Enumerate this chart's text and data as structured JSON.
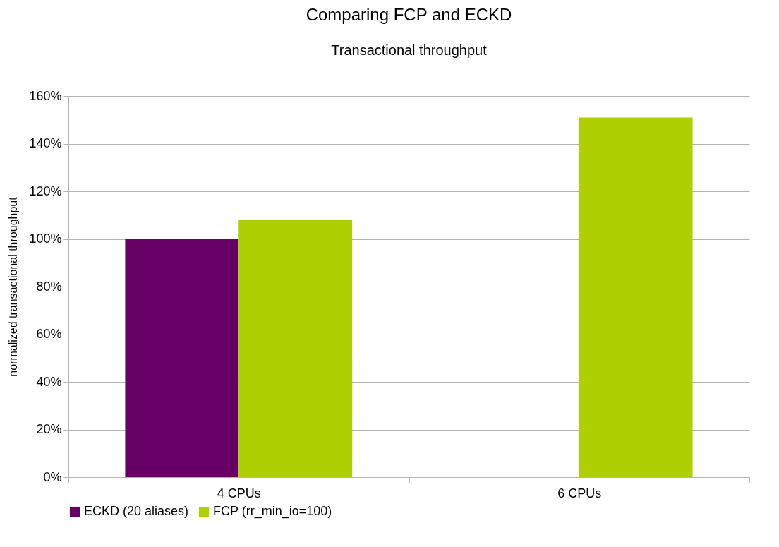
{
  "chart_data": {
    "type": "bar",
    "title": "Comparing FCP and ECKD",
    "subtitle": "Transactional throughput",
    "ylabel": "normalized transactional throughput",
    "categories": [
      "4 CPUs",
      "6 CPUs"
    ],
    "series": [
      {
        "name": "ECKD (20 aliases)",
        "color": "#660066",
        "values": [
          100,
          null
        ]
      },
      {
        "name": "FCP (rr_min_io=100)",
        "color": "#afd000",
        "values": [
          108,
          151
        ]
      }
    ],
    "ylim": [
      0,
      160
    ],
    "yticks": [
      {
        "value": 0,
        "label": "0%"
      },
      {
        "value": 20,
        "label": "20%"
      },
      {
        "value": 40,
        "label": "40%"
      },
      {
        "value": 60,
        "label": "60%"
      },
      {
        "value": 80,
        "label": "80%"
      },
      {
        "value": 100,
        "label": "100%"
      },
      {
        "value": 120,
        "label": "120%"
      },
      {
        "value": 140,
        "label": "140%"
      },
      {
        "value": 160,
        "label": "160%"
      }
    ],
    "grid": "y",
    "legend": "bottom"
  }
}
